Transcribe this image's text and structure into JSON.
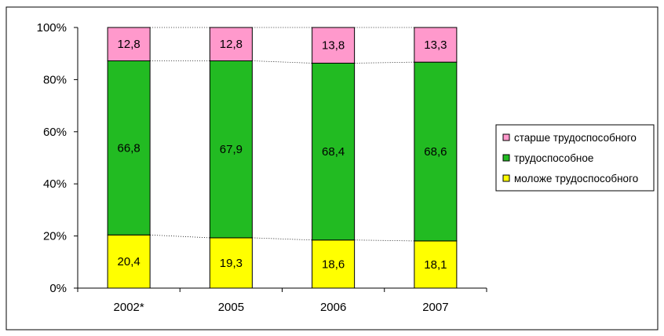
{
  "chart_data": {
    "type": "bar",
    "stacked": true,
    "percent": true,
    "categories": [
      "2002*",
      "2005",
      "2006",
      "2007"
    ],
    "series": [
      {
        "name": "моложе трудоспособного",
        "values": [
          20.4,
          19.3,
          18.6,
          18.1
        ],
        "labels": [
          "20,4",
          "19,3",
          "18,6",
          "18,1"
        ],
        "color": "#ffff00"
      },
      {
        "name": "трудоспособное",
        "values": [
          66.8,
          67.9,
          68.4,
          68.6
        ],
        "labels": [
          "66,8",
          "67,9",
          "68,4",
          "68,6"
        ],
        "color": "#22bb22"
      },
      {
        "name": "старше трудоспособного",
        "values": [
          12.8,
          12.8,
          13.8,
          13.3
        ],
        "labels": [
          "12,8",
          "12,8",
          "13,8",
          "13,3"
        ],
        "color": "#ff99cc"
      }
    ],
    "y_ticks": [
      "0%",
      "20%",
      "40%",
      "60%",
      "80%",
      "100%"
    ],
    "ylim": [
      0,
      100
    ],
    "legend_position": "right",
    "legend_order": [
      "старше трудоспособного",
      "трудоспособное",
      "моложе трудоспособного"
    ],
    "grid": false,
    "series_lines": true
  }
}
